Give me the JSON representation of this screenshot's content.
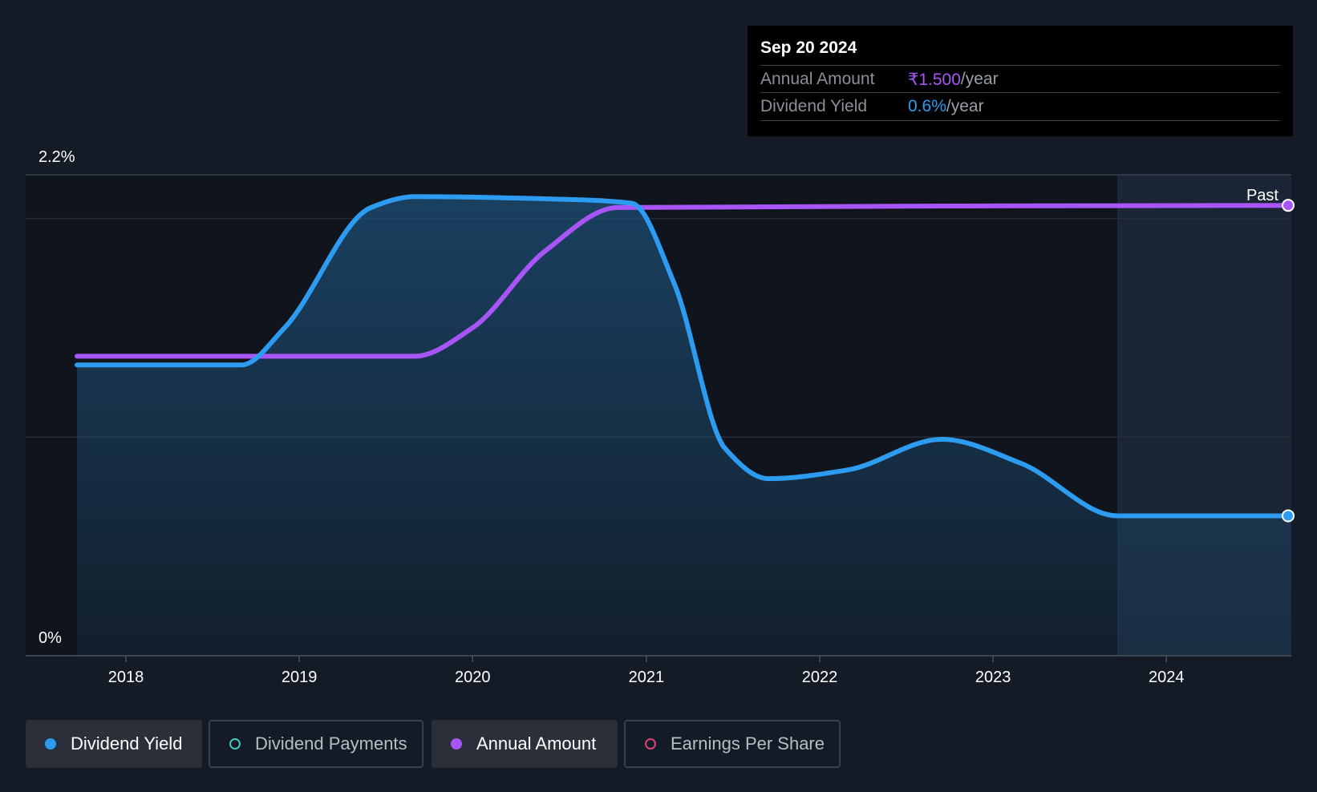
{
  "tooltip": {
    "date": "Sep 20 2024",
    "rows": [
      {
        "label": "Annual Amount",
        "value": "₹1.500",
        "unit": "/year",
        "color": "#a855f7"
      },
      {
        "label": "Dividend Yield",
        "value": "0.6%",
        "unit": "/year",
        "color": "#2d9cf0"
      }
    ]
  },
  "legend": [
    {
      "label": "Dividend Yield",
      "color": "#2d9cf0",
      "filled": true,
      "active": true
    },
    {
      "label": "Dividend Payments",
      "color": "#3ec6c0",
      "filled": false,
      "active": false
    },
    {
      "label": "Annual Amount",
      "color": "#a855f7",
      "filled": true,
      "active": true
    },
    {
      "label": "Earnings Per Share",
      "color": "#d6457a",
      "filled": false,
      "active": false
    }
  ],
  "chart_data": {
    "type": "line",
    "x_ticks": [
      "2018",
      "2019",
      "2020",
      "2021",
      "2022",
      "2023",
      "2024"
    ],
    "y_tick_labels": [
      "2.2%",
      "0%"
    ],
    "ylim": [
      0,
      2.2
    ],
    "past_label": "Past",
    "series": [
      {
        "name": "Dividend Yield",
        "color": "#2d9cf0",
        "points": [
          [
            "2017-09-20",
            1.33
          ],
          [
            "2018-09-01",
            1.33
          ],
          [
            "2018-12-01",
            1.5
          ],
          [
            "2019-06-01",
            2.05
          ],
          [
            "2019-09-01",
            2.1
          ],
          [
            "2020-06-01",
            2.09
          ],
          [
            "2020-12-01",
            2.07
          ],
          [
            "2021-03-01",
            1.7
          ],
          [
            "2021-06-15",
            0.95
          ],
          [
            "2021-09-15",
            0.81
          ],
          [
            "2022-03-01",
            0.85
          ],
          [
            "2022-09-15",
            0.99
          ],
          [
            "2023-03-01",
            0.88
          ],
          [
            "2023-09-20",
            0.64
          ],
          [
            "2024-09-20",
            0.64
          ]
        ]
      },
      {
        "name": "Annual Amount",
        "color": "#a855f7",
        "points": [
          [
            "2017-09-20",
            1.37
          ],
          [
            "2019-09-01",
            1.37
          ],
          [
            "2020-01-01",
            1.5
          ],
          [
            "2020-06-01",
            1.85
          ],
          [
            "2020-11-01",
            2.05
          ],
          [
            "2024-09-20",
            2.06
          ]
        ]
      }
    ]
  }
}
